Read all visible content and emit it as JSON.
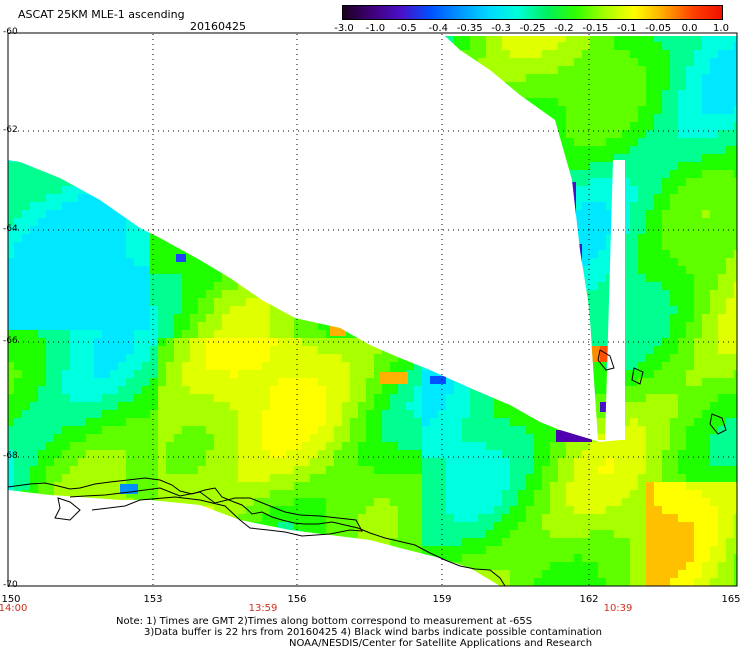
{
  "title": "ASCAT 25KM MLE-1 ascending",
  "date": "20160425",
  "colorbar": {
    "labels": [
      "-3.0",
      "-1.0",
      "-0.5",
      "-0.4",
      "-0.35",
      "-0.3",
      "-0.25",
      "-0.2",
      "-0.15",
      "-0.1",
      "-0.05",
      "0.0",
      "1.0"
    ],
    "colors": [
      "#1a0020",
      "#40007a",
      "#4a10c8",
      "#0050ff",
      "#0096ff",
      "#00d8ff",
      "#00ffd8",
      "#00f060",
      "#30ff00",
      "#a8ff00",
      "#ffff00",
      "#ffa800",
      "#ff4000",
      "#f01000"
    ]
  },
  "axes": {
    "lat_labels": [
      "-60",
      "-62",
      "-64",
      "-66",
      "-68",
      "-70"
    ],
    "lon_labels": [
      "150",
      "153",
      "156",
      "159",
      "162",
      "165"
    ],
    "times": [
      "14:00",
      "13:59",
      "10:39"
    ]
  },
  "notes": [
    "Note: 1) Times are GMT 2)Times along bottom correspond to measurement at -65S",
    "3)Data buffer is 22 hrs from 20160425 4) Black wind barbs indicate possible contamination",
    "NOAA/NESDIS/Center for Satellite Applications and Research"
  ]
}
